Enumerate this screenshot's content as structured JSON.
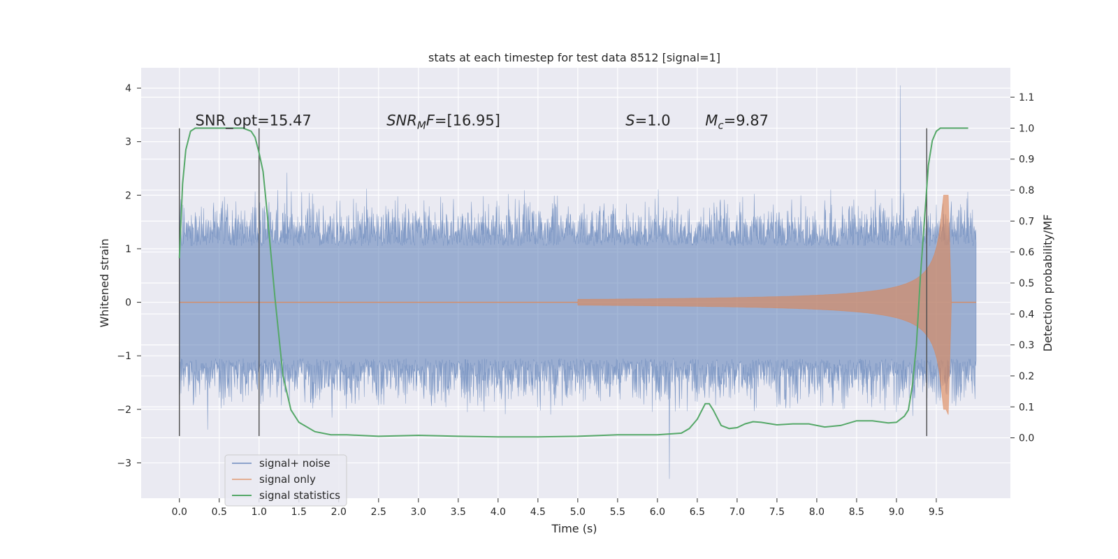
{
  "chart_data": {
    "type": "line",
    "title": "stats at each timestep for test data 8512 [signal=1]",
    "xlabel": "Time (s)",
    "ylabel": "Whitened strain",
    "y2label": "Detection probability/MF",
    "xlim": [
      -0.48,
      10.43
    ],
    "ylim": [
      -3.66,
      4.38
    ],
    "y2lim": [
      -0.195,
      1.195
    ],
    "xticks": [
      0.0,
      0.5,
      1.0,
      1.5,
      2.0,
      2.5,
      3.0,
      3.5,
      4.0,
      4.5,
      5.0,
      5.5,
      6.0,
      6.5,
      7.0,
      7.5,
      8.0,
      8.5,
      9.0,
      9.5
    ],
    "xtick_labels": [
      "0.0",
      "0.5",
      "1.0",
      "1.5",
      "2.0",
      "2.5",
      "3.0",
      "3.5",
      "4.0",
      "4.5",
      "5.0",
      "5.5",
      "6.0",
      "6.5",
      "7.0",
      "7.5",
      "8.0",
      "8.5",
      "9.0",
      "9.5"
    ],
    "yticks": [
      4,
      3,
      2,
      1,
      0,
      -1,
      -2,
      -3
    ],
    "ytick_labels": [
      "4",
      "3",
      "2",
      "1",
      "0",
      "−1",
      "−2",
      "−3"
    ],
    "y2ticks": [
      1.1,
      1.0,
      0.9,
      0.8,
      0.7,
      0.6,
      0.5,
      0.4,
      0.3,
      0.2,
      0.1,
      0.0
    ],
    "y2tick_labels": [
      "1.1",
      "1.0",
      "0.9",
      "0.8",
      "0.7",
      "0.6",
      "0.5",
      "0.4",
      "0.3",
      "0.2",
      "0.1",
      "0.0"
    ],
    "grid": true,
    "legend_position": "bottom-left",
    "annotations": [
      {
        "text": "SNR_opt=15.47",
        "x": 0.2,
        "y": 3.25
      },
      {
        "text": "SNR_MF=[16.95]",
        "x": 2.6,
        "y": 3.25
      },
      {
        "text": "S=1.0",
        "x": 5.6,
        "y": 3.25
      },
      {
        "text": "M_c=9.87",
        "x": 6.6,
        "y": 3.25
      }
    ],
    "vertical_markers": [
      {
        "x": 0.0,
        "ymin": -2.5,
        "ymax": 3.25
      },
      {
        "x": 1.0,
        "ymin": -2.5,
        "ymax": 3.25
      },
      {
        "x": 9.38,
        "ymin": -2.5,
        "ymax": 3.25
      }
    ],
    "series": [
      {
        "name": "signal+ noise",
        "axis": "left",
        "color": "#4c72b0",
        "opacity": 0.5,
        "x_range": [
          0.0,
          10.0
        ],
        "envelope": {
          "typical": 1.0,
          "peak_high": 4.05,
          "peak_high_at": 9.05,
          "peak_low": -3.3,
          "peak_low_at": 6.15
        }
      },
      {
        "name": "signal only",
        "axis": "left",
        "color": "#dd8452",
        "opacity": 0.6,
        "x_range": [
          0.0,
          10.0
        ],
        "chirp": {
          "start": 5.0,
          "merger": 9.65,
          "max_amplitude": 2.0,
          "min_after_merger": -2.1
        }
      },
      {
        "name": "signal statistics",
        "axis": "right",
        "color": "#55a868",
        "x": [
          0.0,
          0.04,
          0.08,
          0.14,
          0.2,
          0.3,
          0.5,
          0.7,
          0.8,
          0.9,
          0.95,
          1.0,
          1.05,
          1.1,
          1.2,
          1.3,
          1.4,
          1.5,
          1.7,
          1.9,
          2.1,
          2.5,
          3.0,
          3.5,
          4.0,
          4.5,
          5.0,
          5.5,
          6.0,
          6.3,
          6.4,
          6.5,
          6.6,
          6.65,
          6.7,
          6.8,
          6.9,
          7.0,
          7.1,
          7.2,
          7.3,
          7.5,
          7.7,
          7.9,
          8.1,
          8.3,
          8.5,
          8.7,
          8.9,
          9.0,
          9.1,
          9.15,
          9.2,
          9.25,
          9.3,
          9.35,
          9.4,
          9.45,
          9.5,
          9.55,
          9.7,
          9.9
        ],
        "values": [
          0.58,
          0.82,
          0.93,
          0.99,
          1.0,
          1.0,
          1.0,
          1.0,
          1.0,
          0.99,
          0.97,
          0.92,
          0.86,
          0.73,
          0.45,
          0.2,
          0.09,
          0.05,
          0.02,
          0.01,
          0.01,
          0.005,
          0.008,
          0.005,
          0.003,
          0.003,
          0.005,
          0.01,
          0.01,
          0.015,
          0.03,
          0.06,
          0.11,
          0.11,
          0.09,
          0.04,
          0.03,
          0.033,
          0.045,
          0.052,
          0.05,
          0.042,
          0.045,
          0.045,
          0.035,
          0.04,
          0.055,
          0.055,
          0.048,
          0.05,
          0.07,
          0.09,
          0.17,
          0.3,
          0.52,
          0.7,
          0.88,
          0.96,
          0.99,
          1.0,
          1.0,
          1.0
        ]
      }
    ]
  }
}
